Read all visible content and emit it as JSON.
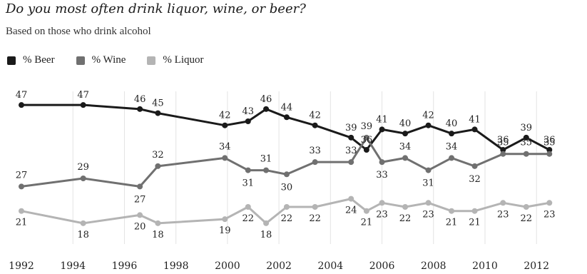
{
  "title": "Do you most often drink liquor, wine, or beer?",
  "subtitle": "Based on those who drink alcohol",
  "chart_data": {
    "type": "line",
    "title": "Do you most often drink liquor, wine, or beer?",
    "subtitle": "Based on those who drink alcohol",
    "xlabel": "",
    "ylabel": "",
    "x_ticks": [
      "1992",
      "1994",
      "1996",
      "1998",
      "2000",
      "2002",
      "2004",
      "2006",
      "2008",
      "2010",
      "2012"
    ],
    "x": [
      1992.0,
      1994.4,
      1996.6,
      1997.3,
      1999.9,
      2000.8,
      2001.5,
      2002.3,
      2003.4,
      2004.8,
      2005.4,
      2006.0,
      2006.9,
      2007.8,
      2008.7,
      2009.6,
      2010.7,
      2011.6,
      2012.5,
      2013.6
    ],
    "ylim": [
      15,
      50
    ],
    "grid": false,
    "legend_position": "top-left",
    "series": [
      {
        "name": "% Beer",
        "color": "#1a1a1a",
        "values": [
          47,
          47,
          46,
          45,
          42,
          43,
          46,
          44,
          42,
          39,
          36,
          41,
          40,
          42,
          40,
          41,
          36,
          39,
          36,
          null
        ],
        "labels": [
          "47",
          "47",
          "46",
          "45",
          "42",
          "43",
          "46",
          "44",
          "42",
          "39",
          "36",
          "41",
          "40",
          "42",
          "40",
          "41",
          "36",
          "39",
          "36",
          ""
        ]
      },
      {
        "name": "% Wine",
        "color": "#707070",
        "values": [
          27,
          29,
          27,
          32,
          34,
          31,
          31,
          30,
          33,
          33,
          39,
          33,
          34,
          31,
          34,
          32,
          35,
          35,
          35,
          null
        ],
        "labels": [
          "27",
          "29",
          "27",
          "32",
          "34",
          "31",
          "31",
          "30",
          "33",
          "33",
          "39",
          "33",
          "34",
          "31",
          "34",
          "32",
          "35",
          "35",
          "35",
          ""
        ]
      },
      {
        "name": "% Liquor",
        "color": "#b4b4b4",
        "values": [
          21,
          18,
          20,
          18,
          19,
          22,
          18,
          22,
          22,
          24,
          21,
          23,
          22,
          23,
          21,
          21,
          23,
          22,
          23,
          null
        ],
        "labels": [
          "21",
          "18",
          "20",
          "18",
          "19",
          "22",
          "18",
          "22",
          "22",
          "24",
          "21",
          "23",
          "22",
          "23",
          "21",
          "21",
          "23",
          "22",
          "23",
          ""
        ]
      }
    ]
  }
}
